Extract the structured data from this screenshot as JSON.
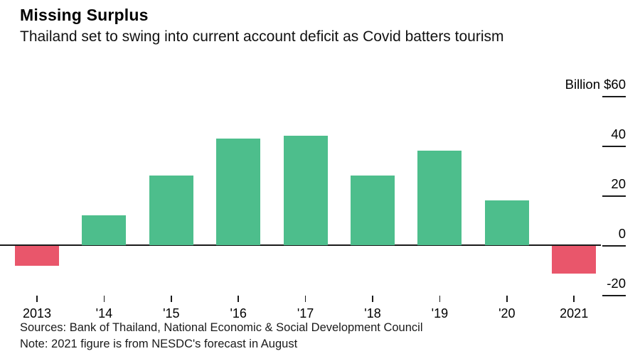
{
  "header": {
    "title": "Missing Surplus",
    "subtitle": "Thailand set to swing into current account deficit as Covid batters tourism"
  },
  "chart_data": {
    "type": "bar",
    "categories": [
      "2013",
      "'14",
      "'15",
      "'16",
      "'17",
      "'18",
      "'19",
      "'20",
      "2021"
    ],
    "values": [
      -8,
      12,
      28,
      43,
      44,
      28,
      38,
      18,
      -11
    ],
    "title": "Missing Surplus",
    "subtitle": "Thailand set to swing into current account deficit as Covid batters tourism",
    "unit_label": "Billion $60",
    "y_ticks": [
      {
        "value": 60,
        "label": "Billion $60"
      },
      {
        "value": 40,
        "label": "40"
      },
      {
        "value": 20,
        "label": "20"
      },
      {
        "value": 0,
        "label": "0"
      },
      {
        "value": -20,
        "label": "-20"
      }
    ],
    "ylim": [
      -20,
      60
    ],
    "xlabel": "",
    "ylabel": "Billion $",
    "grid": "zero-line-only",
    "legend_position": "none",
    "positive_color": "#4dbe8c",
    "negative_color": "#e9566b"
  },
  "footer": {
    "sources": "Sources: Bank of Thailand, National Economic & Social Development Council",
    "note": "Note: 2021 figure is from NESDC's forecast in August"
  }
}
